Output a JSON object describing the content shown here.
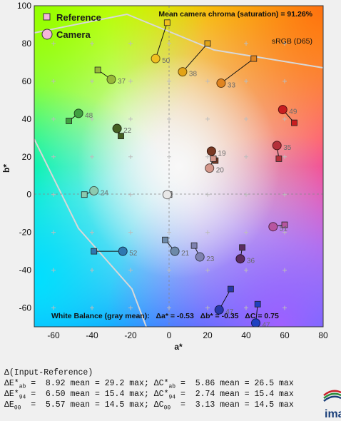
{
  "chart_data": {
    "type": "scatter",
    "xlabel": "a*",
    "ylabel": "b*",
    "xlim": [
      -70,
      80
    ],
    "ylim": [
      -70,
      100
    ],
    "xticks": [
      -60,
      -40,
      -20,
      0,
      20,
      40,
      60,
      80
    ],
    "yticks": [
      -60,
      -40,
      -20,
      0,
      20,
      40,
      60,
      80,
      100
    ],
    "legend": [
      {
        "name": "Reference",
        "marker": "square",
        "color": "#f4b6dc"
      },
      {
        "name": "Camera",
        "marker": "circle",
        "color": "#f4b6dc"
      }
    ],
    "legend_position": "top-left",
    "headline": "Mean camera chroma (saturation) = 91.26%",
    "gamut_label": "sRGB (D65)",
    "white_balance": "White Balance (gray mean):   Δa* = -0.53   Δb* = -0.35   ΔC = 0.75",
    "patches": [
      {
        "id": "50",
        "ref": [
          -1,
          91
        ],
        "cam": [
          -7,
          72
        ],
        "color": "#f0c020"
      },
      {
        "id": "38",
        "ref": [
          20,
          80
        ],
        "cam": [
          7,
          65
        ],
        "color": "#e2a418"
      },
      {
        "id": "33",
        "ref": [
          44,
          72
        ],
        "cam": [
          27,
          59
        ],
        "color": "#e08420"
      },
      {
        "id": "37",
        "ref": [
          -37,
          66
        ],
        "cam": [
          -30,
          61
        ],
        "color": "#98b83a"
      },
      {
        "id": "48",
        "ref": [
          -52,
          39
        ],
        "cam": [
          -47,
          43
        ],
        "color": "#40a040"
      },
      {
        "id": "22",
        "ref": [
          -25,
          31
        ],
        "cam": [
          -27,
          35
        ],
        "color": "#455f22"
      },
      {
        "id": "49",
        "ref": [
          65,
          38
        ],
        "cam": [
          59,
          45
        ],
        "color": "#c81e20"
      },
      {
        "id": "19",
        "ref": [
          24,
          18
        ],
        "cam": [
          22,
          23
        ],
        "color": "#7a3a24"
      },
      {
        "id": "20",
        "ref": [
          23,
          19
        ],
        "cam": [
          21,
          14
        ],
        "color": "#d4968a"
      },
      {
        "id": "35",
        "ref": [
          57,
          19
        ],
        "cam": [
          56,
          26
        ],
        "color": "#b4303a"
      },
      {
        "id": "24",
        "ref": [
          -44,
          0
        ],
        "cam": [
          -39,
          2
        ],
        "color": "#8ccab0"
      },
      {
        "id": "51",
        "ref": [
          60,
          -16
        ],
        "cam": [
          54,
          -17
        ],
        "color": "#b855a0"
      },
      {
        "id": "21",
        "ref": [
          -2,
          -24
        ],
        "cam": [
          3,
          -30
        ],
        "color": "#6d89a8"
      },
      {
        "id": "23",
        "ref": [
          13,
          -27
        ],
        "cam": [
          16,
          -33
        ],
        "color": "#7f82b0"
      },
      {
        "id": "36",
        "ref": [
          38,
          -28
        ],
        "cam": [
          37,
          -34
        ],
        "color": "#5a2c60"
      },
      {
        "id": "52",
        "ref": [
          -39,
          -30
        ],
        "cam": [
          -24,
          -30
        ],
        "color": "#2f78b0"
      },
      {
        "id": "47",
        "ref": [
          32,
          -50
        ],
        "cam": [
          26,
          -61
        ],
        "color": "#2838a8"
      },
      {
        "id": "47",
        "ref": [
          46,
          -58
        ],
        "cam": [
          45,
          -68
        ],
        "color": "#1f40c0"
      },
      {
        "id": "gray",
        "ref": [
          0,
          0
        ],
        "cam": [
          -1,
          0
        ],
        "color": "#e8e8e8"
      }
    ]
  },
  "stats": {
    "title": "Δ(Input-Reference)",
    "rows": [
      {
        "a1": "ΔE*",
        "s1": "ab",
        "v1": " =  8.92 mean = 29.2 max; ",
        "a2": "ΔC*",
        "s2": "ab",
        "v2": " =  5.86 mean = 26.5 max"
      },
      {
        "a1": "ΔE*",
        "s1": "94",
        "v1": " =  6.50 mean = 15.4 max; ",
        "a2": "ΔC*",
        "s2": "94",
        "v2": " =  2.74 mean = 15.4 max"
      },
      {
        "a1": "ΔE",
        "s1": "00",
        "v1": "  =  5.57 mean = 14.5 max; ",
        "a2": "ΔC",
        "s2": "00",
        "v2": "  =  3.13 mean = 14.5 max"
      }
    ]
  },
  "logo": {
    "text": "ima",
    "colors": [
      "#c8202a",
      "#2a8a3a",
      "#1a3f7a"
    ]
  }
}
